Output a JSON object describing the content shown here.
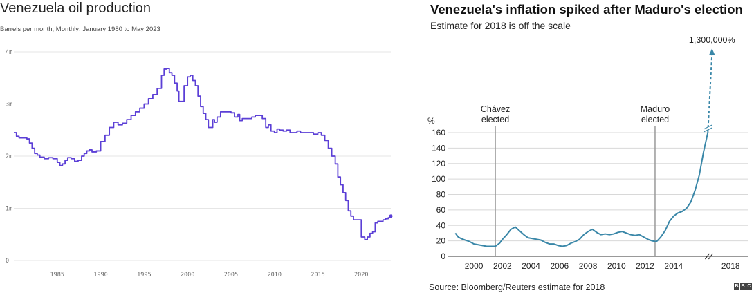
{
  "chart_data": [
    {
      "type": "line",
      "title": "Venezuela oil production",
      "subtitle": "Barrels per month; Monthly; January 1980 to May 2023",
      "xlabel": "",
      "ylabel": "",
      "x_ticks": [
        1985,
        1990,
        1995,
        2000,
        2005,
        2010,
        2015,
        2020
      ],
      "y_ticks": [
        {
          "value": 0,
          "label": "0"
        },
        {
          "value": 1,
          "label": "1m"
        },
        {
          "value": 2,
          "label": "2m"
        },
        {
          "value": 3,
          "label": "3m"
        },
        {
          "value": 4,
          "label": "4m"
        }
      ],
      "xlim": [
        1980,
        2023.4
      ],
      "ylim": [
        0,
        4
      ],
      "grid": true,
      "line_color": "#5b3fd6",
      "x": [
        1980.0,
        1980.3,
        1980.6,
        1981.0,
        1981.5,
        1981.8,
        1982.1,
        1982.4,
        1982.7,
        1983.0,
        1983.5,
        1984.0,
        1984.5,
        1985.0,
        1985.3,
        1985.6,
        1985.9,
        1986.2,
        1986.6,
        1987.0,
        1987.4,
        1987.8,
        1988.1,
        1988.4,
        1988.7,
        1989.0,
        1989.5,
        1990.0,
        1990.5,
        1991.0,
        1991.5,
        1992.0,
        1992.5,
        1993.0,
        1993.5,
        1994.0,
        1994.5,
        1995.0,
        1995.5,
        1996.0,
        1996.5,
        1997.0,
        1997.3,
        1997.6,
        1997.9,
        1998.2,
        1998.5,
        1998.8,
        1999.0,
        1999.2,
        1999.6,
        2000.0,
        2000.3,
        2000.6,
        2000.9,
        2001.2,
        2001.5,
        2001.8,
        2002.1,
        2002.4,
        2002.7,
        2002.9,
        2003.1,
        2003.4,
        2003.8,
        2004.2,
        2004.6,
        2005.0,
        2005.4,
        2005.8,
        2006.0,
        2006.3,
        2006.6,
        2007.0,
        2007.4,
        2007.8,
        2008.2,
        2008.6,
        2009.0,
        2009.3,
        2009.6,
        2010.0,
        2010.3,
        2010.6,
        2011.0,
        2011.4,
        2011.8,
        2012.2,
        2012.6,
        2013.0,
        2013.5,
        2014.0,
        2014.5,
        2015.0,
        2015.4,
        2015.8,
        2016.2,
        2016.6,
        2017.0,
        2017.3,
        2017.6,
        2017.9,
        2018.2,
        2018.5,
        2018.8,
        2019.1,
        2019.4,
        2019.7,
        2020.0,
        2020.4,
        2020.7,
        2021.0,
        2021.3,
        2021.6,
        2021.9,
        2022.2,
        2022.5,
        2022.8,
        2023.1,
        2023.4
      ],
      "y": [
        2.45,
        2.38,
        2.35,
        2.35,
        2.33,
        2.25,
        2.15,
        2.05,
        2.02,
        1.98,
        1.95,
        1.97,
        1.95,
        1.88,
        1.82,
        1.85,
        1.92,
        1.97,
        1.95,
        1.9,
        1.92,
        2.0,
        2.05,
        2.1,
        2.12,
        2.08,
        2.1,
        2.28,
        2.4,
        2.55,
        2.65,
        2.6,
        2.63,
        2.7,
        2.78,
        2.85,
        2.92,
        3.0,
        3.1,
        3.18,
        3.3,
        3.55,
        3.67,
        3.68,
        3.6,
        3.55,
        3.4,
        3.25,
        3.05,
        3.05,
        3.35,
        3.52,
        3.55,
        3.45,
        3.35,
        3.15,
        2.95,
        2.82,
        2.7,
        2.55,
        2.55,
        2.7,
        2.65,
        2.75,
        2.85,
        2.85,
        2.85,
        2.83,
        2.75,
        2.8,
        2.68,
        2.72,
        2.72,
        2.72,
        2.75,
        2.78,
        2.78,
        2.72,
        2.55,
        2.6,
        2.48,
        2.45,
        2.52,
        2.5,
        2.48,
        2.5,
        2.45,
        2.45,
        2.48,
        2.45,
        2.45,
        2.45,
        2.42,
        2.45,
        2.4,
        2.3,
        2.15,
        2.0,
        1.85,
        1.6,
        1.45,
        1.3,
        1.15,
        0.95,
        0.85,
        0.78,
        0.78,
        0.78,
        0.45,
        0.4,
        0.45,
        0.52,
        0.55,
        0.72,
        0.75,
        0.75,
        0.78,
        0.8,
        0.82,
        0.85
      ]
    },
    {
      "type": "line",
      "title": "Venezuela's inflation spiked after Maduro's election",
      "subtitle": "Estimate for 2018 is off the scale",
      "xlabel": "",
      "ylabel": "%",
      "x_ticks": [
        2000,
        2002,
        2004,
        2006,
        2008,
        2010,
        2012,
        2014,
        2018
      ],
      "y_ticks": [
        0,
        20,
        40,
        60,
        80,
        100,
        120,
        140,
        160
      ],
      "xlim": [
        1998.2,
        2019.2
      ],
      "ylim": [
        0,
        160
      ],
      "axis_break": "between 2014 and 2018",
      "grid": true,
      "line_color": "#3a87a8",
      "annotations": [
        {
          "text": [
            "Chávez",
            "elected"
          ],
          "x": 2001.5
        },
        {
          "text": [
            "Maduro",
            "elected"
          ],
          "x": 2012.7
        },
        {
          "text": [
            "1,300,000%"
          ],
          "x": 2018.0
        }
      ],
      "x": [
        1998.7,
        1998.9,
        1999.1,
        1999.4,
        1999.7,
        2000.0,
        2000.3,
        2000.6,
        2000.9,
        2001.2,
        2001.5,
        2001.8,
        2002.0,
        2002.3,
        2002.6,
        2002.9,
        2003.2,
        2003.5,
        2003.8,
        2004.1,
        2004.4,
        2004.7,
        2005.0,
        2005.3,
        2005.6,
        2005.9,
        2006.2,
        2006.5,
        2006.8,
        2007.1,
        2007.4,
        2007.7,
        2008.0,
        2008.3,
        2008.6,
        2008.9,
        2009.2,
        2009.5,
        2009.8,
        2010.1,
        2010.4,
        2010.7,
        2011.0,
        2011.3,
        2011.6,
        2011.9,
        2012.2,
        2012.5,
        2012.8,
        2013.1,
        2013.4,
        2013.7,
        2014.0,
        2014.3,
        2014.6,
        2014.9,
        2015.2,
        2015.5,
        2015.8,
        2016.1,
        2016.4
      ],
      "y": [
        30,
        25,
        23,
        21,
        19,
        16,
        15,
        14,
        13,
        13,
        13,
        17,
        22,
        28,
        35,
        38,
        33,
        28,
        24,
        23,
        22,
        21,
        18,
        16,
        16,
        14,
        13,
        14,
        17,
        19,
        22,
        28,
        32,
        35,
        31,
        28,
        29,
        28,
        29,
        31,
        32,
        30,
        28,
        27,
        28,
        25,
        22,
        20,
        19,
        25,
        33,
        45,
        52,
        56,
        58,
        62,
        70,
        85,
        105,
        135,
        160
      ]
    }
  ],
  "source": "Source: Bloomberg/Reuters estimate for 2018",
  "logo_text": [
    "B",
    "B",
    "C"
  ]
}
